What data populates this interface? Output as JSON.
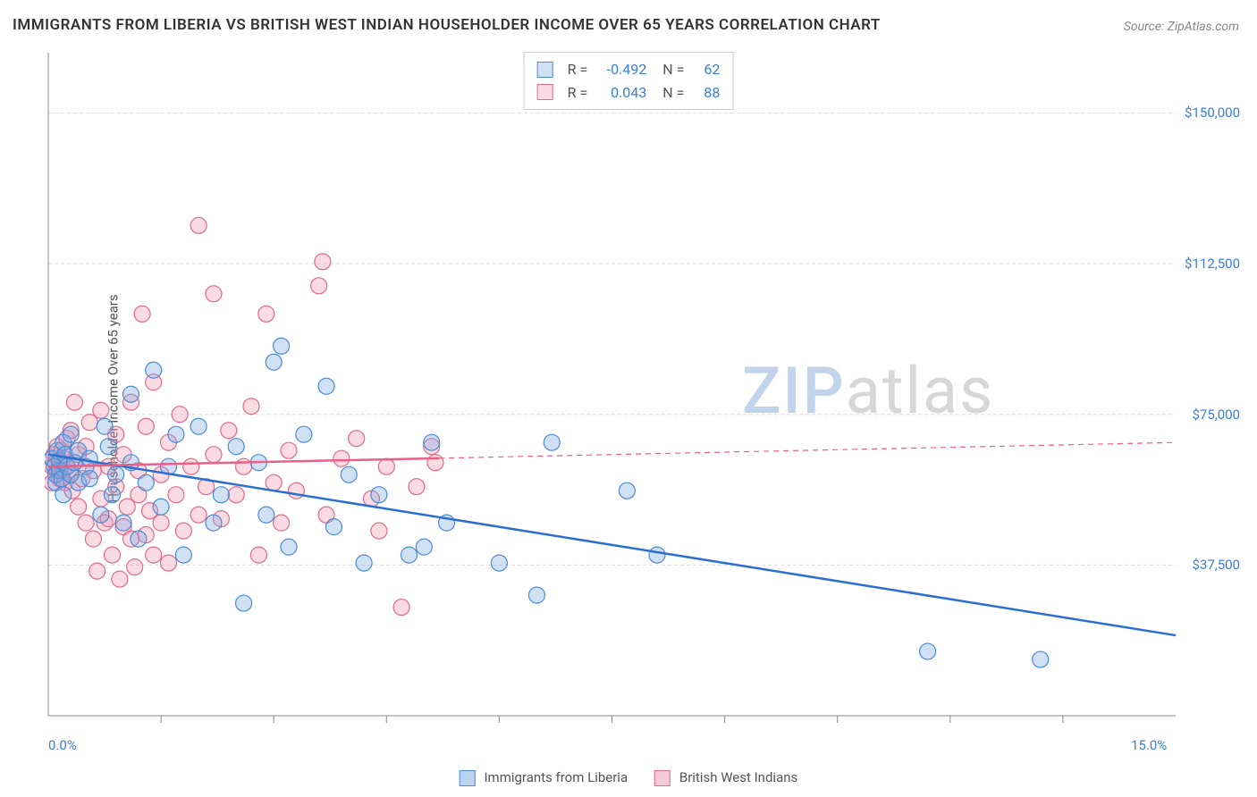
{
  "title": "IMMIGRANTS FROM LIBERIA VS BRITISH WEST INDIAN HOUSEHOLDER INCOME OVER 65 YEARS CORRELATION CHART",
  "source": "Source: ZipAtlas.com",
  "ylabel": "Householder Income Over 65 years",
  "watermark": {
    "part1": "ZIP",
    "part2": "atlas"
  },
  "chart": {
    "type": "scatter",
    "xlim": [
      0,
      15
    ],
    "ylim": [
      0,
      165000
    ],
    "grid_color": "#dddddd",
    "grid_dash": "4,3",
    "axis_color": "#888888",
    "background": "#ffffff",
    "yticks": [
      {
        "v": 37500,
        "label": "$37,500"
      },
      {
        "v": 75000,
        "label": "$75,000"
      },
      {
        "v": 112500,
        "label": "$112,500"
      },
      {
        "v": 150000,
        "label": "$150,000"
      }
    ],
    "xticks_minor": [
      1.5,
      3.0,
      4.5,
      6.0,
      7.5,
      9.0,
      10.5,
      12.0,
      13.5
    ],
    "xtick_labels": [
      {
        "v": 0,
        "label": "0.0%"
      },
      {
        "v": 15,
        "label": "15.0%"
      }
    ],
    "marker_radius": 9,
    "marker_stroke_width": 1.2,
    "trend_line_width": 2.5,
    "series": [
      {
        "name": "Immigrants from Liberia",
        "fill": "rgba(120,170,230,0.35)",
        "stroke": "#4a8bd6",
        "trend_color": "#2b6fd0",
        "trend": {
          "x1": 0,
          "y1": 65000,
          "x2": 15,
          "y2": 20000
        },
        "trend_dash_after_x": null,
        "R": "-0.492",
        "N": "62",
        "points": [
          [
            0.05,
            64000
          ],
          [
            0.08,
            62000
          ],
          [
            0.1,
            60000
          ],
          [
            0.12,
            66000
          ],
          [
            0.1,
            58000
          ],
          [
            0.15,
            61000
          ],
          [
            0.15,
            63500
          ],
          [
            0.18,
            59000
          ],
          [
            0.2,
            68000
          ],
          [
            0.2,
            55000
          ],
          [
            0.22,
            65000
          ],
          [
            0.25,
            62000
          ],
          [
            0.3,
            60000
          ],
          [
            0.3,
            70000
          ],
          [
            0.35,
            63000
          ],
          [
            0.4,
            58000
          ],
          [
            0.4,
            66000
          ],
          [
            0.5,
            62000
          ],
          [
            0.55,
            59000
          ],
          [
            0.55,
            64000
          ],
          [
            0.7,
            50000
          ],
          [
            0.75,
            72000
          ],
          [
            0.8,
            67000
          ],
          [
            0.85,
            55000
          ],
          [
            0.9,
            60000
          ],
          [
            1.0,
            48000
          ],
          [
            1.1,
            63000
          ],
          [
            1.1,
            80000
          ],
          [
            1.2,
            44000
          ],
          [
            1.3,
            58000
          ],
          [
            1.4,
            86000
          ],
          [
            1.5,
            52000
          ],
          [
            1.6,
            62000
          ],
          [
            1.7,
            70000
          ],
          [
            1.8,
            40000
          ],
          [
            2.0,
            72000
          ],
          [
            2.2,
            48000
          ],
          [
            2.3,
            55000
          ],
          [
            2.5,
            67000
          ],
          [
            2.6,
            28000
          ],
          [
            2.8,
            63000
          ],
          [
            2.9,
            50000
          ],
          [
            3.0,
            88000
          ],
          [
            3.1,
            92000
          ],
          [
            3.2,
            42000
          ],
          [
            3.4,
            70000
          ],
          [
            3.7,
            82000
          ],
          [
            3.8,
            47000
          ],
          [
            4.0,
            60000
          ],
          [
            4.2,
            38000
          ],
          [
            4.4,
            55000
          ],
          [
            4.8,
            40000
          ],
          [
            5.0,
            42000
          ],
          [
            5.1,
            68000
          ],
          [
            5.3,
            48000
          ],
          [
            6.0,
            38000
          ],
          [
            6.5,
            30000
          ],
          [
            6.7,
            68000
          ],
          [
            7.7,
            56000
          ],
          [
            8.1,
            40000
          ],
          [
            11.7,
            16000
          ],
          [
            13.2,
            14000
          ]
        ]
      },
      {
        "name": "British West Indians",
        "fill": "rgba(240,150,175,0.35)",
        "stroke": "#e06a8a",
        "trend_color": "#e85f88",
        "trend": {
          "x1": 0,
          "y1": 62000,
          "x2": 15,
          "y2": 68000
        },
        "trend_dash_after_x": 5.2,
        "R": "0.043",
        "N": "88",
        "points": [
          [
            0.05,
            62000
          ],
          [
            0.05,
            58000
          ],
          [
            0.08,
            65000
          ],
          [
            0.1,
            60000
          ],
          [
            0.1,
            63000
          ],
          [
            0.12,
            61000
          ],
          [
            0.12,
            67000
          ],
          [
            0.15,
            59000
          ],
          [
            0.15,
            63000
          ],
          [
            0.18,
            66000
          ],
          [
            0.2,
            61000
          ],
          [
            0.2,
            64000
          ],
          [
            0.22,
            58000
          ],
          [
            0.25,
            62000
          ],
          [
            0.25,
            69000
          ],
          [
            0.3,
            60000
          ],
          [
            0.3,
            71000
          ],
          [
            0.32,
            56000
          ],
          [
            0.35,
            63000
          ],
          [
            0.35,
            78000
          ],
          [
            0.4,
            52000
          ],
          [
            0.4,
            65000
          ],
          [
            0.45,
            59000
          ],
          [
            0.5,
            48000
          ],
          [
            0.5,
            67000
          ],
          [
            0.55,
            73000
          ],
          [
            0.6,
            44000
          ],
          [
            0.6,
            61000
          ],
          [
            0.65,
            36000
          ],
          [
            0.7,
            54000
          ],
          [
            0.7,
            76000
          ],
          [
            0.75,
            48000
          ],
          [
            0.8,
            62000
          ],
          [
            0.8,
            49000
          ],
          [
            0.85,
            40000
          ],
          [
            0.9,
            57000
          ],
          [
            0.9,
            70000
          ],
          [
            0.95,
            34000
          ],
          [
            1.0,
            47000
          ],
          [
            1.0,
            65000
          ],
          [
            1.05,
            52000
          ],
          [
            1.1,
            44000
          ],
          [
            1.1,
            78000
          ],
          [
            1.15,
            37000
          ],
          [
            1.2,
            55000
          ],
          [
            1.2,
            61000
          ],
          [
            1.25,
            100000
          ],
          [
            1.3,
            45000
          ],
          [
            1.3,
            72000
          ],
          [
            1.35,
            51000
          ],
          [
            1.4,
            40000
          ],
          [
            1.4,
            83000
          ],
          [
            1.5,
            48000
          ],
          [
            1.5,
            60000
          ],
          [
            1.6,
            68000
          ],
          [
            1.6,
            38000
          ],
          [
            1.7,
            55000
          ],
          [
            1.75,
            75000
          ],
          [
            1.8,
            46000
          ],
          [
            1.9,
            62000
          ],
          [
            2.0,
            50000
          ],
          [
            2.0,
            122000
          ],
          [
            2.1,
            57000
          ],
          [
            2.2,
            65000
          ],
          [
            2.2,
            105000
          ],
          [
            2.3,
            49000
          ],
          [
            2.4,
            71000
          ],
          [
            2.5,
            55000
          ],
          [
            2.6,
            62000
          ],
          [
            2.7,
            77000
          ],
          [
            2.8,
            40000
          ],
          [
            2.9,
            100000
          ],
          [
            3.0,
            58000
          ],
          [
            3.1,
            48000
          ],
          [
            3.2,
            66000
          ],
          [
            3.3,
            56000
          ],
          [
            3.6,
            107000
          ],
          [
            3.7,
            50000
          ],
          [
            3.65,
            113000
          ],
          [
            3.9,
            64000
          ],
          [
            4.1,
            69000
          ],
          [
            4.3,
            54000
          ],
          [
            4.4,
            46000
          ],
          [
            4.5,
            62000
          ],
          [
            4.7,
            27000
          ],
          [
            4.9,
            57000
          ],
          [
            5.1,
            67000
          ],
          [
            5.15,
            63000
          ]
        ]
      }
    ]
  },
  "bottom_legend": [
    {
      "label": "Immigrants from Liberia",
      "fill": "rgba(120,170,230,0.5)",
      "stroke": "#4a8bd6"
    },
    {
      "label": "British West Indians",
      "fill": "rgba(240,150,175,0.5)",
      "stroke": "#e06a8a"
    }
  ]
}
